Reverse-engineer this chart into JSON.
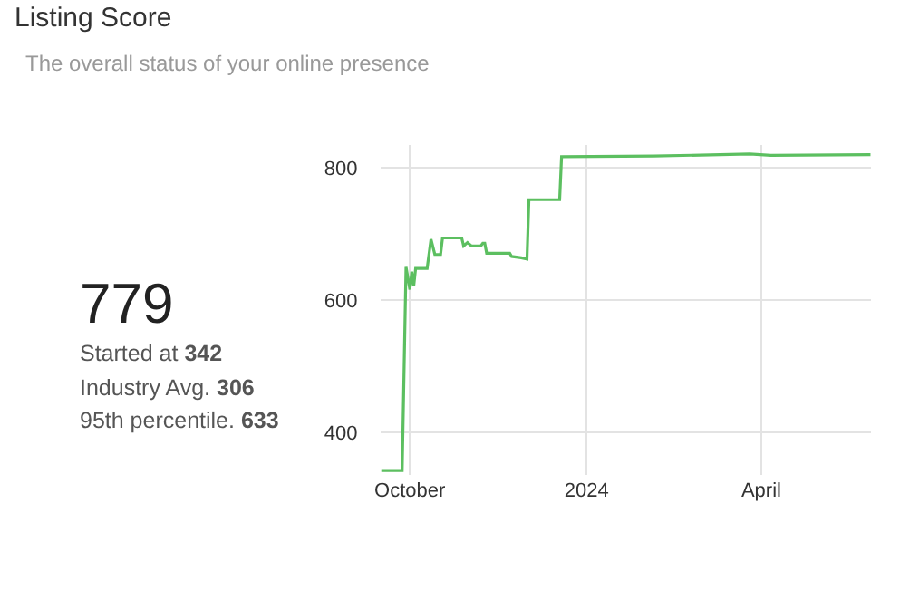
{
  "chart_data": {
    "type": "line",
    "title": "Listing Score",
    "subtitle": "The overall status of your online presence",
    "annotations": [
      "779",
      "Started at 342",
      "Industry Avg. 306",
      "95th percentile. 633"
    ],
    "x": [
      "2023-09-16",
      "2023-09-27",
      "2023-09-29",
      "2023-10-01",
      "2023-10-02",
      "2023-10-03",
      "2023-10-04",
      "2023-10-10",
      "2023-10-12",
      "2023-10-14",
      "2023-10-17",
      "2023-10-18",
      "2023-10-28",
      "2023-10-29",
      "2023-10-31",
      "2023-11-02",
      "2023-11-07",
      "2023-11-08",
      "2023-11-09",
      "2023-11-10",
      "2023-11-22",
      "2023-11-23",
      "2023-11-28",
      "2023-12-01",
      "2023-12-02",
      "2023-12-18",
      "2023-12-19",
      "2024-02-05",
      "2024-03-26",
      "2024-04-06",
      "2024-05-28"
    ],
    "series": [
      {
        "color": "#5cbf60",
        "values": [
          342,
          342,
          650,
          616,
          643,
          621,
          648,
          648,
          692,
          669,
          669,
          694,
          694,
          682,
          687,
          682,
          682,
          686,
          686,
          671,
          671,
          666,
          664,
          662,
          752,
          752,
          817,
          818,
          821,
          819,
          820
        ]
      }
    ],
    "xlim": [
      "2023-09-16",
      "2024-05-28"
    ],
    "xticks": [
      {
        "value": "2023-10-01",
        "label": "October"
      },
      {
        "value": "2024-01-01",
        "label": "2024"
      },
      {
        "value": "2024-04-01",
        "label": "April"
      }
    ],
    "ylim": [
      335,
      835
    ],
    "yticks": [
      400,
      600,
      800
    ],
    "grid": true,
    "marker": "none",
    "line_style": "solid"
  }
}
